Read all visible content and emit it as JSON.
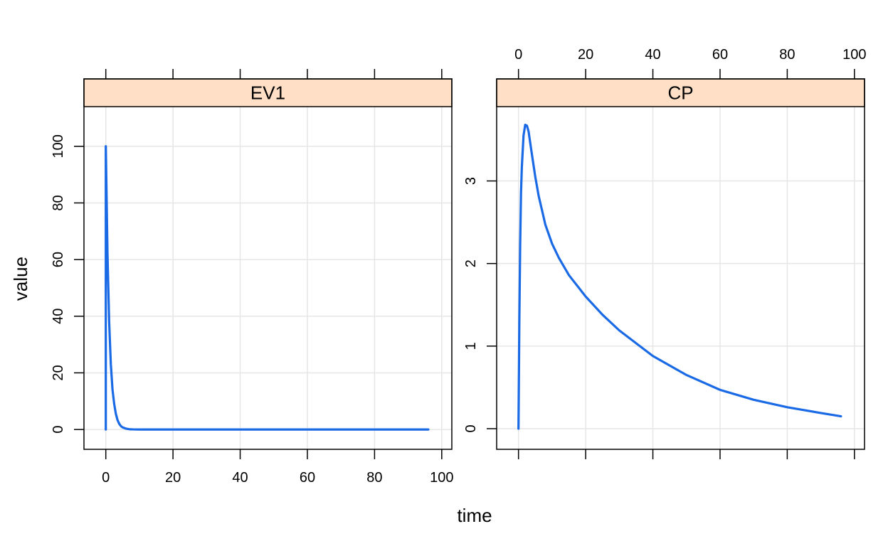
{
  "chart_data": {
    "type": "line",
    "xlabel": "time",
    "ylabel": "value",
    "line_color": "#1a6ae6",
    "strip_color": "#ffe0c6",
    "grid": true,
    "panels": [
      {
        "name": "EV1",
        "xlim": [
          -6.5,
          103
        ],
        "ylim": [
          -7,
          114
        ],
        "xticks": [
          0,
          20,
          40,
          60,
          80,
          100
        ],
        "yticks": [
          0,
          20,
          40,
          60,
          80,
          100
        ],
        "x_ticklabels_side": "bottom",
        "series": [
          {
            "x": [
              0,
              0,
              0.5,
              1,
              1.5,
              2,
              2.5,
              3,
              3.5,
              4,
              4.5,
              5,
              6,
              7,
              8,
              10,
              20,
              40,
              60,
              80,
              96
            ],
            "y": [
              0,
              100,
              62,
              38,
              23,
              14,
              9,
              5.5,
              3.3,
              2.0,
              1.2,
              0.75,
              0.3,
              0.1,
              0.04,
              0,
              0,
              0,
              0,
              0,
              0
            ]
          }
        ]
      },
      {
        "name": "CP",
        "xlim": [
          -6.5,
          103
        ],
        "ylim": [
          -0.25,
          3.9
        ],
        "xticks": [
          0,
          20,
          40,
          60,
          80,
          100
        ],
        "yticks": [
          0,
          1,
          2,
          3
        ],
        "x_ticklabels_side": "top",
        "series": [
          {
            "x": [
              0,
              0.25,
              0.5,
              0.75,
              1,
              1.5,
              2,
              2.5,
              3,
              4,
              5,
              6,
              8,
              10,
              12,
              15,
              20,
              25,
              30,
              40,
              50,
              60,
              70,
              80,
              90,
              96
            ],
            "y": [
              0,
              1.3,
              2.22,
              2.86,
              3.17,
              3.55,
              3.68,
              3.67,
              3.6,
              3.32,
              3.05,
              2.82,
              2.47,
              2.24,
              2.07,
              1.86,
              1.6,
              1.38,
              1.19,
              0.88,
              0.65,
              0.47,
              0.35,
              0.26,
              0.19,
              0.15
            ]
          }
        ]
      }
    ]
  }
}
